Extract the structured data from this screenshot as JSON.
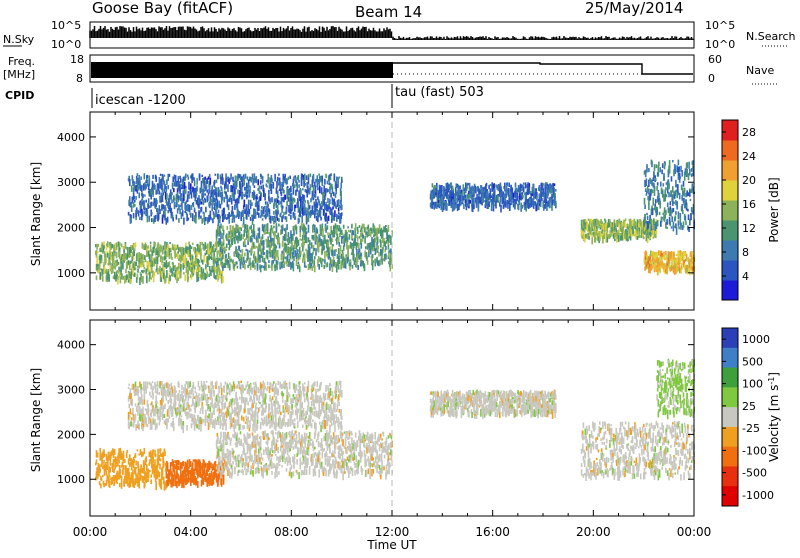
{
  "header": {
    "station": "Goose Bay (fitACF)",
    "beam": "Beam 14",
    "date": "25/May/2014"
  },
  "status_panels": {
    "nsky_label": "N.Sky",
    "nsky_ticks": [
      "10^5",
      "10^0"
    ],
    "nsearch_label": "N.Search",
    "nsearch_ticks": [
      "10^5",
      "10^0"
    ],
    "freq_label": "Freq.",
    "freq_unit": "[MHz]",
    "freq_ticks": [
      "18",
      "8"
    ],
    "nave_label": "Nave",
    "nave_ticks": [
      "60",
      "0"
    ],
    "cpid_label": "CPID",
    "cpid_segments": [
      {
        "label": "icescan -1200",
        "start_hour": 0,
        "end_hour": 12
      },
      {
        "label": "tau (fast) 503",
        "start_hour": 12,
        "end_hour": 24
      }
    ]
  },
  "chart_data": [
    {
      "type": "heatmap",
      "title": "",
      "xlabel": "Time UT",
      "ylabel": "Slant Range [km]",
      "xlim": [
        0,
        24
      ],
      "ylim": [
        180,
        4550
      ],
      "x_ticks": [
        "00:00",
        "04:00",
        "08:00",
        "12:00",
        "16:00",
        "20:00",
        "00:00"
      ],
      "y_ticks": [
        1000,
        2000,
        3000,
        4000
      ],
      "colorbar": {
        "label": "Power [dB]",
        "ticks": [
          4,
          8,
          12,
          16,
          20,
          24,
          28
        ],
        "range": [
          0,
          30
        ]
      },
      "echo_regions": [
        {
          "hour_start": 0.2,
          "hour_end": 5.3,
          "range_start": 900,
          "range_end": 1700,
          "level": 14
        },
        {
          "hour_start": 5.0,
          "hour_end": 12.0,
          "range_start": 1150,
          "range_end": 2100,
          "level": 12
        },
        {
          "hour_start": 1.5,
          "hour_end": 10.0,
          "range_start": 2200,
          "range_end": 3200,
          "level": 7
        },
        {
          "hour_start": 13.5,
          "hour_end": 18.5,
          "range_start": 2500,
          "range_end": 3000,
          "level": 7
        },
        {
          "hour_start": 19.5,
          "hour_end": 22.5,
          "range_start": 1800,
          "range_end": 2200,
          "level": 15
        },
        {
          "hour_start": 22.0,
          "hour_end": 24.0,
          "range_start": 1100,
          "range_end": 1500,
          "level": 20
        },
        {
          "hour_start": 22.0,
          "hour_end": 24.0,
          "range_start": 2000,
          "range_end": 3500,
          "level": 9
        }
      ]
    },
    {
      "type": "heatmap",
      "title": "",
      "xlabel": "Time UT",
      "ylabel": "Slant Range [km]",
      "xlim": [
        0,
        24
      ],
      "ylim": [
        180,
        4550
      ],
      "x_ticks": [
        "00:00",
        "04:00",
        "08:00",
        "12:00",
        "16:00",
        "20:00",
        "00:00"
      ],
      "y_ticks": [
        1000,
        2000,
        3000,
        4000
      ],
      "colorbar": {
        "label": "Velocity [m s^-1]",
        "ticks": [
          "1000",
          "500",
          "100",
          "25",
          "-25",
          "-100",
          "-500",
          "-1000"
        ]
      },
      "echo_regions": [
        {
          "hour_start": 3.0,
          "hour_end": 5.3,
          "range_start": 950,
          "range_end": 1450,
          "velocity": -200
        },
        {
          "hour_start": 0.2,
          "hour_end": 3.0,
          "range_start": 900,
          "range_end": 1700,
          "velocity": -60
        },
        {
          "hour_start": 5.0,
          "hour_end": 12.0,
          "range_start": 1150,
          "range_end": 2100,
          "velocity": 0
        },
        {
          "hour_start": 1.5,
          "hour_end": 10.0,
          "range_start": 2200,
          "range_end": 3200,
          "velocity": 0
        },
        {
          "hour_start": 13.5,
          "hour_end": 18.5,
          "range_start": 2500,
          "range_end": 3000,
          "velocity": 0
        },
        {
          "hour_start": 19.5,
          "hour_end": 24.0,
          "range_start": 1100,
          "range_end": 2300,
          "velocity": 0
        },
        {
          "hour_start": 22.5,
          "hour_end": 24.0,
          "range_start": 2500,
          "range_end": 3700,
          "velocity": 40
        }
      ]
    }
  ]
}
